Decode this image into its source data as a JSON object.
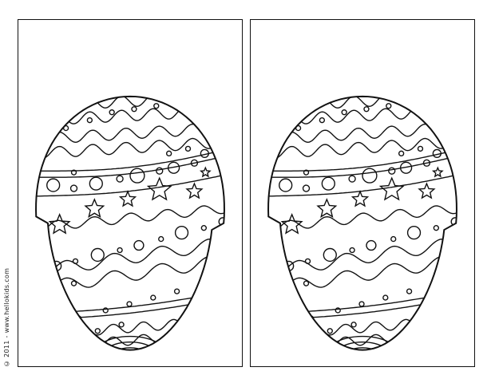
{
  "credit": "© 2011 - www.hellokids.com",
  "colors": {
    "line": "#111111",
    "paper": "#ffffff"
  },
  "panels": [
    {
      "name": "left",
      "picture": "decorated-easter-egg-outline"
    },
    {
      "name": "right",
      "picture": "decorated-easter-egg-outline"
    }
  ]
}
